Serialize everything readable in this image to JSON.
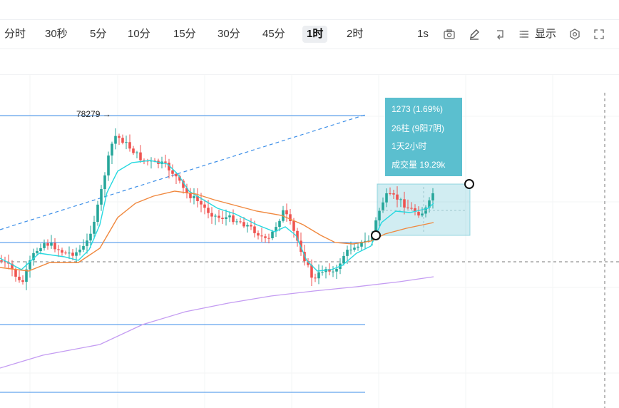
{
  "toolbar": {
    "timeframes": [
      {
        "label": "分时",
        "active": false
      },
      {
        "label": "30秒",
        "active": false
      },
      {
        "label": "5分",
        "active": false
      },
      {
        "label": "10分",
        "active": false
      },
      {
        "label": "15分",
        "active": false
      },
      {
        "label": "30分",
        "active": false
      },
      {
        "label": "45分",
        "active": false
      },
      {
        "label": "1时",
        "active": true
      },
      {
        "label": "2时",
        "active": false
      }
    ],
    "speed_label": "1s",
    "display_label": "显示",
    "icons": [
      "camera-icon",
      "draw-pencil-icon",
      "replay-icon",
      "menu-icon",
      "settings-icon",
      "fullscreen-icon"
    ]
  },
  "colors": {
    "up": "#26a69a",
    "down": "#ef5350",
    "ma_fast": "#26d9e0",
    "ma_mid": "#f0883e",
    "ma_slow": "#c49cf2",
    "hline": "#3b8ee8",
    "tooltip_bg": "#5bbfcf"
  },
  "chart_data": {
    "type": "candlestick",
    "title": "",
    "peak_label": "78279",
    "measure_tooltip": {
      "change": "1273 (1.69%)",
      "bars": "26柱 (9阳7阴)",
      "duration": "1天2小时",
      "volume": "成交量 19.29k"
    },
    "grid": true
  }
}
